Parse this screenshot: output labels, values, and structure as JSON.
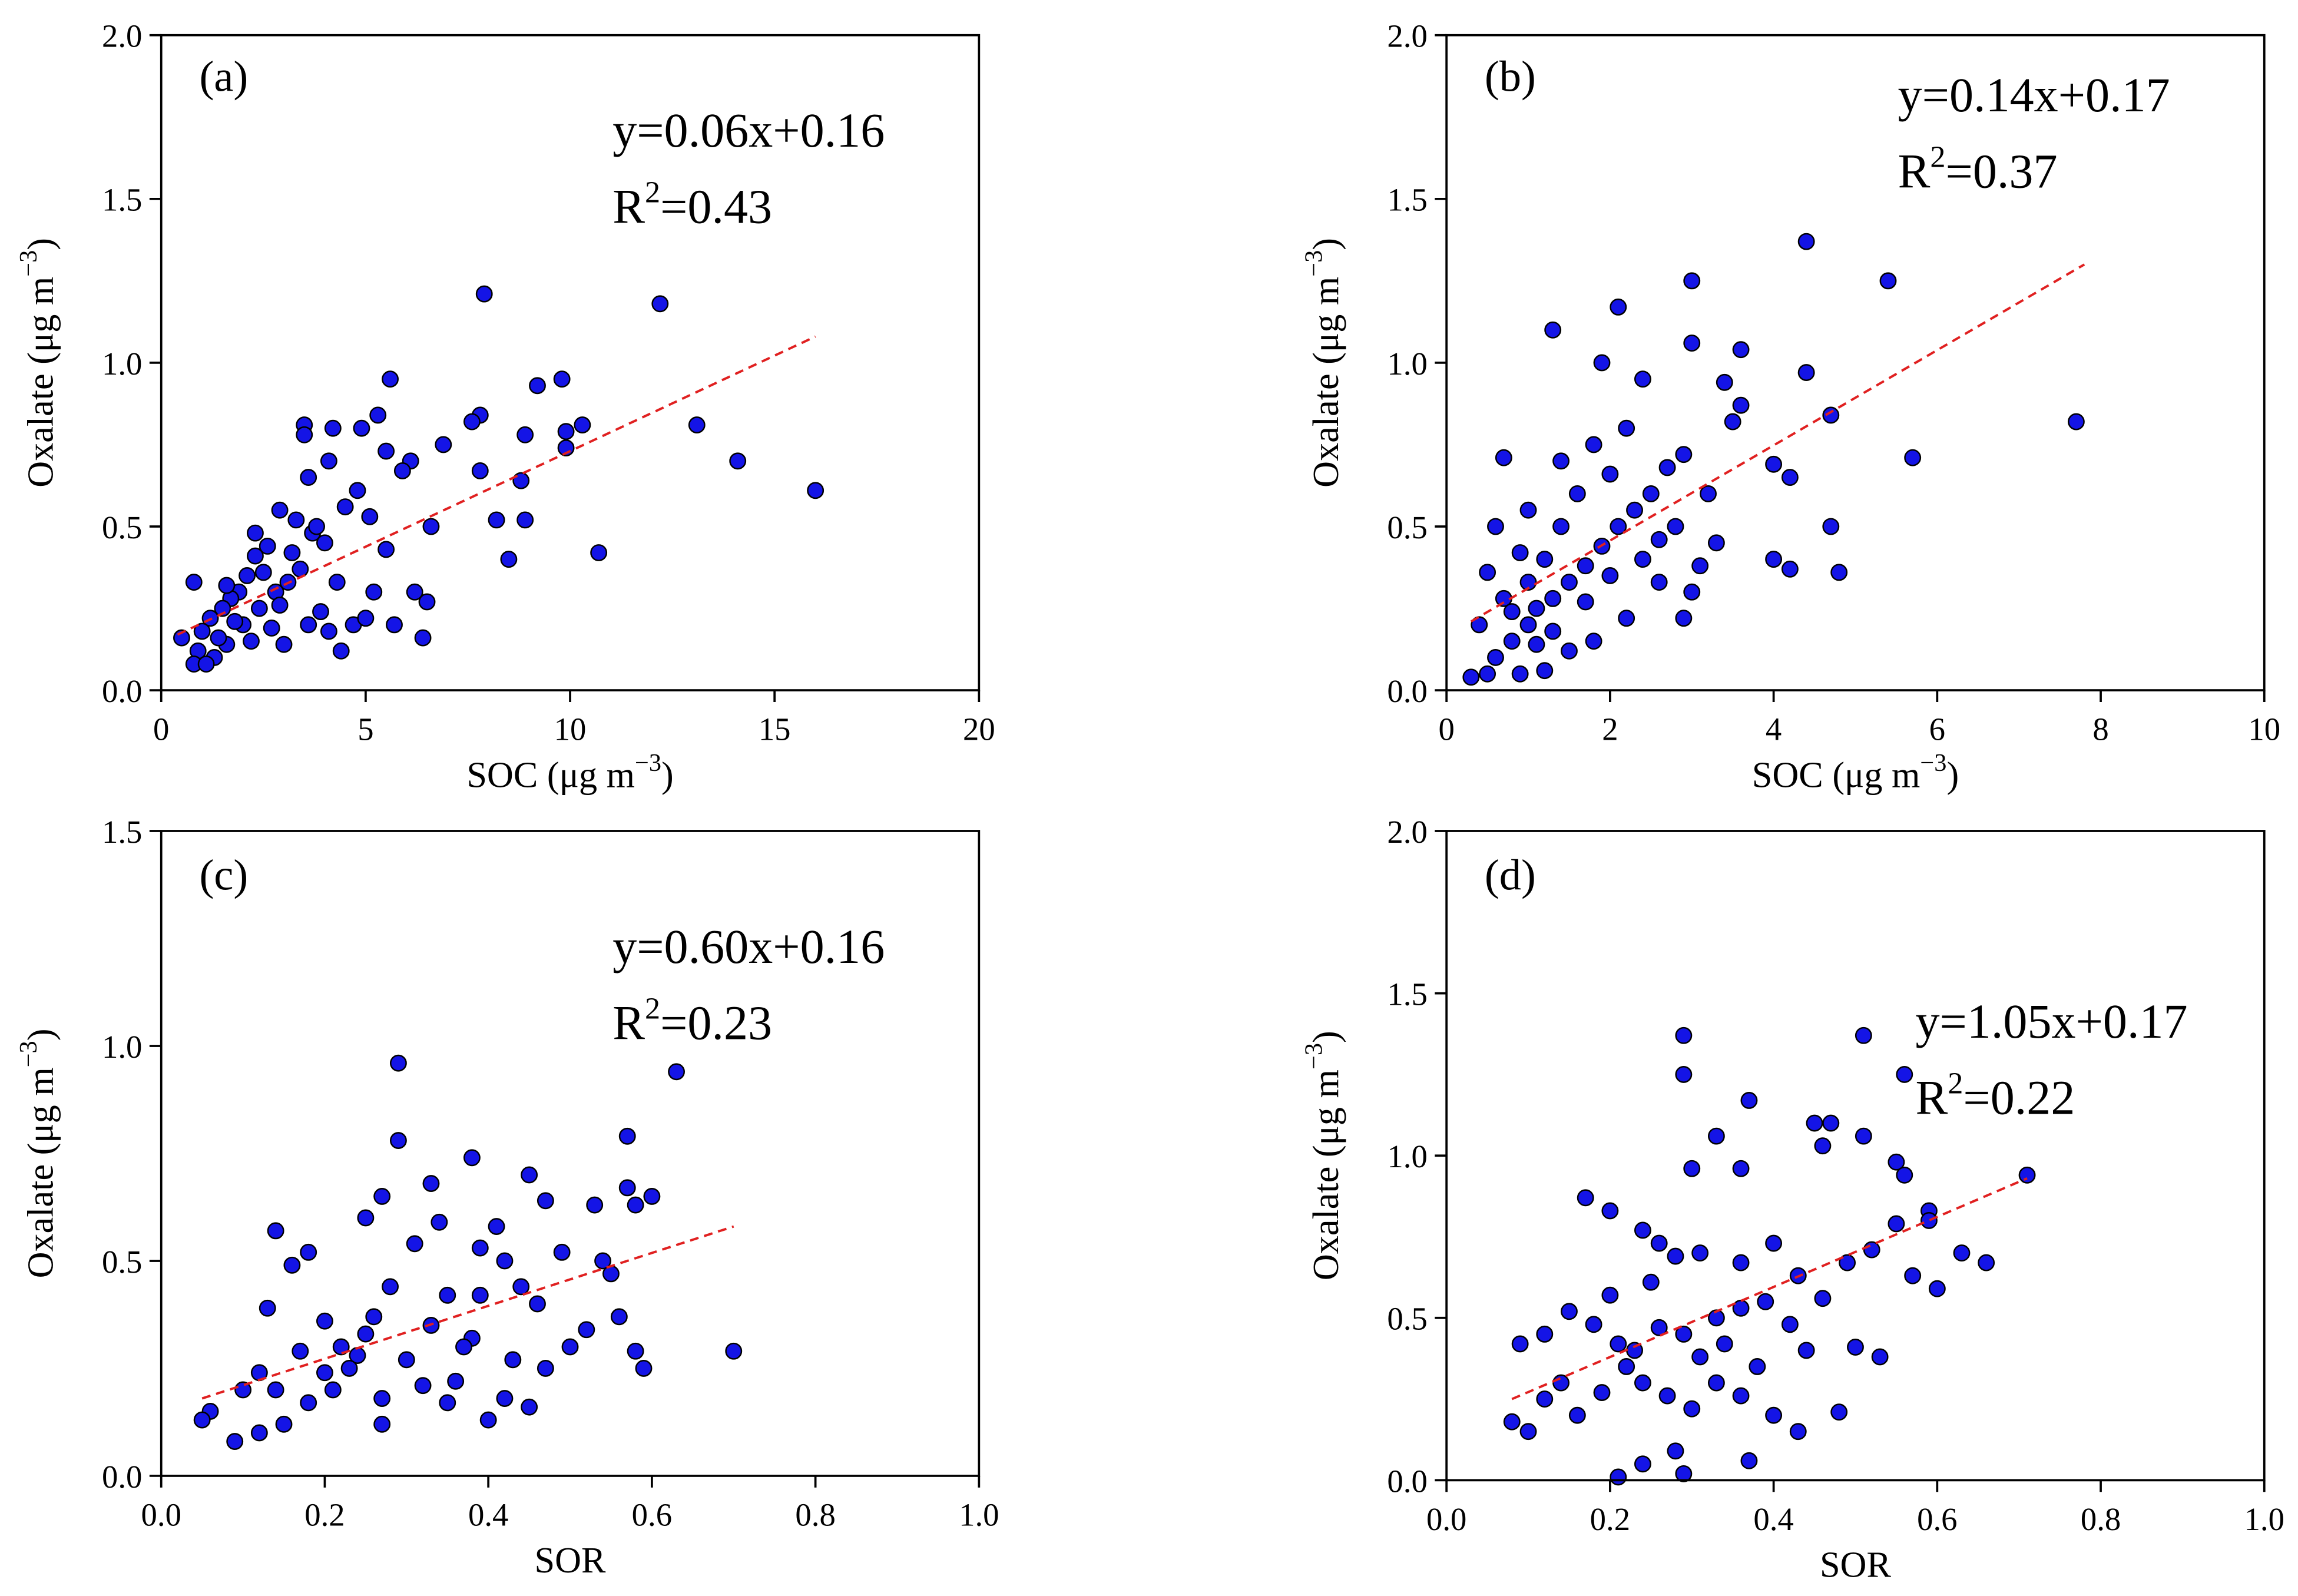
{
  "chart_data": [
    {
      "type": "scatter",
      "label": "(a)",
      "equation": "y=0.06x+0.16",
      "r2_base": "R",
      "r2_sup": "2",
      "r2_value": "=0.43",
      "xlabel": "SOC (μg m",
      "xlabel_sup": "−3",
      "xlabel_end": ")",
      "ylabel": "Oxalate (μg m",
      "ylabel_sup": "−3",
      "ylabel_end": ")",
      "color": "#1414e6",
      "fit_color": "#e02020",
      "xlim": [
        0,
        20
      ],
      "ylim": [
        0,
        2
      ],
      "xticks": [
        0,
        5,
        10,
        15,
        20
      ],
      "yticks": [
        {
          "value": 0,
          "label": "0.0"
        },
        0.5,
        {
          "value": 1,
          "label": "1.0"
        },
        1.5,
        {
          "value": 2,
          "label": "2.0"
        }
      ],
      "fit_x": [
        0.4,
        16
      ],
      "fit_y": [
        0.17,
        1.08
      ],
      "x": [
        7.9,
        12.2,
        5.6,
        9.8,
        9.2,
        10.3,
        13.1,
        14.1,
        16,
        10.7,
        8.5,
        7.8,
        7.6,
        6.9,
        7.8,
        8.2,
        8.9,
        8.8,
        8.9,
        9.9,
        9.9,
        5.3,
        3.5,
        3.5,
        4.2,
        4.9,
        6.1,
        5.9,
        6.6,
        6.5,
        6.4,
        6.2,
        5.7,
        5.5,
        5.1,
        4.8,
        4.5,
        4.0,
        3.7,
        3.3,
        2.9,
        2.6,
        2.3,
        2.1,
        1.9,
        1.7,
        1.5,
        1.2,
        1.0,
        0.9,
        0.8,
        0.5,
        0.8,
        1.3,
        1.6,
        2.0,
        2.4,
        2.8,
        3.1,
        3.4,
        3.9,
        4.1,
        4.4,
        4.7,
        5.2,
        2.2,
        2.7,
        3.0,
        3.6,
        1.1,
        1.4,
        1.8,
        2.5,
        3.2,
        3.8,
        4.3,
        5.0,
        2.9,
        1.6,
        2.3,
        3.6,
        4.1,
        5.5
      ],
      "values": [
        1.21,
        1.18,
        0.95,
        0.95,
        0.93,
        0.81,
        0.81,
        0.7,
        0.61,
        0.42,
        0.4,
        0.84,
        0.82,
        0.75,
        0.67,
        0.52,
        0.52,
        0.64,
        0.78,
        0.79,
        0.74,
        0.84,
        0.81,
        0.78,
        0.8,
        0.8,
        0.7,
        0.67,
        0.5,
        0.27,
        0.16,
        0.3,
        0.2,
        0.43,
        0.53,
        0.61,
        0.56,
        0.45,
        0.48,
        0.52,
        0.55,
        0.44,
        0.41,
        0.35,
        0.3,
        0.28,
        0.25,
        0.22,
        0.18,
        0.12,
        0.08,
        0.16,
        0.33,
        0.1,
        0.14,
        0.2,
        0.25,
        0.3,
        0.33,
        0.37,
        0.24,
        0.18,
        0.12,
        0.2,
        0.3,
        0.15,
        0.19,
        0.14,
        0.2,
        0.08,
        0.16,
        0.21,
        0.36,
        0.42,
        0.5,
        0.33,
        0.22,
        0.26,
        0.32,
        0.48,
        0.65,
        0.7,
        0.73
      ]
    },
    {
      "type": "scatter",
      "label": "(b)",
      "equation": "y=0.14x+0.17",
      "r2_base": "R",
      "r2_sup": "2",
      "r2_value": "=0.37",
      "xlabel": "SOC (μg m",
      "xlabel_sup": "−3",
      "xlabel_end": ")",
      "ylabel": "Oxalate (μg m",
      "ylabel_sup": "−3",
      "ylabel_end": ")",
      "color": "#1414e6",
      "fit_color": "#e02020",
      "xlim": [
        0,
        10
      ],
      "ylim": [
        0,
        2
      ],
      "xticks": [
        0,
        2,
        4,
        6,
        8,
        10
      ],
      "yticks": [
        {
          "value": 0,
          "label": "0.0"
        },
        0.5,
        {
          "value": 1,
          "label": "1.0"
        },
        1.5,
        {
          "value": 2,
          "label": "2.0"
        }
      ],
      "fit_x": [
        0.3,
        7.8
      ],
      "fit_y": [
        0.21,
        1.3
      ],
      "x": [
        4.4,
        3.0,
        5.4,
        2.1,
        1.3,
        3.0,
        3.6,
        1.9,
        4.4,
        2.4,
        3.4,
        7.7,
        4.7,
        5.7,
        4.0,
        4.2,
        4.0,
        4.2,
        4.7,
        4.8,
        0.7,
        0.3,
        0.5,
        0.6,
        0.8,
        1.0,
        1.1,
        1.3,
        1.5,
        1.7,
        1.9,
        2.1,
        2.3,
        2.5,
        2.7,
        2.9,
        3.2,
        3.5,
        3.6,
        3.3,
        3.0,
        2.9,
        2.6,
        2.2,
        1.8,
        1.5,
        1.2,
        0.9,
        0.4,
        0.5,
        0.6,
        0.9,
        1.0,
        1.2,
        1.4,
        1.6,
        1.8,
        2.0,
        2.2,
        2.4,
        2.6,
        0.7,
        0.8,
        1.1,
        1.3,
        1.7,
        2.0,
        2.8,
        3.1,
        1.4,
        1.0
      ],
      "values": [
        1.37,
        1.25,
        1.25,
        1.17,
        1.1,
        1.06,
        1.04,
        1.0,
        0.97,
        0.95,
        0.94,
        0.82,
        0.84,
        0.71,
        0.69,
        0.65,
        0.4,
        0.37,
        0.5,
        0.36,
        0.71,
        0.04,
        0.05,
        0.1,
        0.15,
        0.2,
        0.25,
        0.28,
        0.33,
        0.38,
        0.44,
        0.5,
        0.55,
        0.6,
        0.68,
        0.72,
        0.6,
        0.82,
        0.87,
        0.45,
        0.3,
        0.22,
        0.33,
        0.22,
        0.15,
        0.12,
        0.06,
        0.05,
        0.2,
        0.36,
        0.5,
        0.42,
        0.33,
        0.4,
        0.5,
        0.6,
        0.75,
        0.66,
        0.8,
        0.4,
        0.46,
        0.28,
        0.24,
        0.14,
        0.18,
        0.27,
        0.35,
        0.5,
        0.38,
        0.7,
        0.55
      ]
    },
    {
      "type": "scatter",
      "label": "(c)",
      "equation": "y=0.60x+0.16",
      "r2_base": "R",
      "r2_sup": "2",
      "r2_value": "=0.23",
      "xlabel": "SOR",
      "ylabel": "Oxalate (μg m",
      "ylabel_sup": "−3",
      "ylabel_end": ")",
      "color": "#1414e6",
      "fit_color": "#e02020",
      "xlim": [
        0,
        1
      ],
      "ylim": [
        0,
        1.5
      ],
      "xticks": [
        {
          "value": 0,
          "label": "0.0"
        },
        0.2,
        0.4,
        0.6,
        0.8,
        {
          "value": 1,
          "label": "1.0"
        }
      ],
      "yticks": [
        {
          "value": 0,
          "label": "0.0"
        },
        0.5,
        {
          "value": 1,
          "label": "1.0"
        },
        1.5
      ],
      "fit_x": [
        0.05,
        0.7
      ],
      "fit_y": [
        0.18,
        0.58
      ],
      "x": [
        0.29,
        0.63,
        0.29,
        0.57,
        0.38,
        0.33,
        0.45,
        0.57,
        0.6,
        0.58,
        0.27,
        0.25,
        0.34,
        0.41,
        0.47,
        0.53,
        0.14,
        0.18,
        0.31,
        0.39,
        0.42,
        0.49,
        0.54,
        0.16,
        0.28,
        0.35,
        0.44,
        0.55,
        0.13,
        0.2,
        0.26,
        0.33,
        0.38,
        0.46,
        0.52,
        0.56,
        0.7,
        0.58,
        0.59,
        0.47,
        0.43,
        0.36,
        0.3,
        0.24,
        0.17,
        0.12,
        0.1,
        0.06,
        0.05,
        0.09,
        0.12,
        0.15,
        0.18,
        0.21,
        0.23,
        0.27,
        0.27,
        0.32,
        0.35,
        0.4,
        0.42,
        0.45,
        0.5,
        0.14,
        0.2,
        0.22,
        0.25,
        0.37,
        0.39
      ],
      "values": [
        0.96,
        0.94,
        0.78,
        0.79,
        0.74,
        0.68,
        0.7,
        0.67,
        0.65,
        0.63,
        0.65,
        0.6,
        0.59,
        0.58,
        0.64,
        0.63,
        0.57,
        0.52,
        0.54,
        0.53,
        0.5,
        0.52,
        0.5,
        0.49,
        0.44,
        0.42,
        0.44,
        0.47,
        0.39,
        0.36,
        0.37,
        0.35,
        0.32,
        0.4,
        0.34,
        0.37,
        0.29,
        0.29,
        0.25,
        0.25,
        0.27,
        0.22,
        0.27,
        0.28,
        0.29,
        0.24,
        0.2,
        0.15,
        0.13,
        0.08,
        0.1,
        0.12,
        0.17,
        0.2,
        0.25,
        0.12,
        0.18,
        0.21,
        0.17,
        0.13,
        0.18,
        0.16,
        0.3,
        0.2,
        0.24,
        0.3,
        0.33,
        0.3,
        0.42
      ]
    },
    {
      "type": "scatter",
      "label": "(d)",
      "equation": "y=1.05x+0.17",
      "r2_base": "R",
      "r2_sup": "2",
      "r2_value": "=0.22",
      "xlabel": "SOR",
      "ylabel": "Oxalate (μg m",
      "ylabel_sup": "−3",
      "ylabel_end": ")",
      "color": "#1414e6",
      "fit_color": "#e02020",
      "xlim": [
        0,
        1
      ],
      "ylim": [
        0,
        2
      ],
      "xticks": [
        {
          "value": 0,
          "label": "0.0"
        },
        0.2,
        0.4,
        0.6,
        0.8,
        {
          "value": 1,
          "label": "1.0"
        }
      ],
      "yticks": [
        {
          "value": 0,
          "label": "0.0"
        },
        0.5,
        {
          "value": 1,
          "label": "1.0"
        },
        1.5,
        {
          "value": 2,
          "label": "2.0"
        }
      ],
      "fit_x": [
        0.08,
        0.71
      ],
      "fit_y": [
        0.25,
        0.93
      ],
      "x": [
        0.29,
        0.51,
        0.29,
        0.56,
        0.37,
        0.45,
        0.47,
        0.33,
        0.51,
        0.46,
        0.55,
        0.71,
        0.3,
        0.36,
        0.56,
        0.59,
        0.59,
        0.55,
        0.63,
        0.66,
        0.57,
        0.6,
        0.17,
        0.2,
        0.24,
        0.26,
        0.31,
        0.36,
        0.4,
        0.43,
        0.49,
        0.52,
        0.09,
        0.12,
        0.15,
        0.18,
        0.21,
        0.23,
        0.26,
        0.29,
        0.33,
        0.36,
        0.39,
        0.42,
        0.46,
        0.5,
        0.53,
        0.08,
        0.1,
        0.12,
        0.14,
        0.16,
        0.19,
        0.22,
        0.24,
        0.27,
        0.3,
        0.33,
        0.36,
        0.4,
        0.43,
        0.48,
        0.21,
        0.24,
        0.28,
        0.29,
        0.37,
        0.31,
        0.34,
        0.38,
        0.44,
        0.2,
        0.25,
        0.28
      ],
      "values": [
        1.37,
        1.37,
        1.25,
        1.25,
        1.17,
        1.1,
        1.1,
        1.06,
        1.06,
        1.03,
        0.98,
        0.94,
        0.96,
        0.96,
        0.94,
        0.83,
        0.8,
        0.79,
        0.7,
        0.67,
        0.63,
        0.59,
        0.87,
        0.83,
        0.77,
        0.73,
        0.7,
        0.67,
        0.73,
        0.63,
        0.67,
        0.71,
        0.42,
        0.45,
        0.52,
        0.48,
        0.42,
        0.4,
        0.47,
        0.45,
        0.5,
        0.53,
        0.55,
        0.48,
        0.56,
        0.41,
        0.38,
        0.18,
        0.15,
        0.25,
        0.3,
        0.2,
        0.27,
        0.35,
        0.3,
        0.26,
        0.22,
        0.3,
        0.26,
        0.2,
        0.15,
        0.21,
        0.01,
        0.05,
        0.09,
        0.02,
        0.06,
        0.38,
        0.42,
        0.35,
        0.4,
        0.57,
        0.61,
        0.69
      ]
    }
  ]
}
